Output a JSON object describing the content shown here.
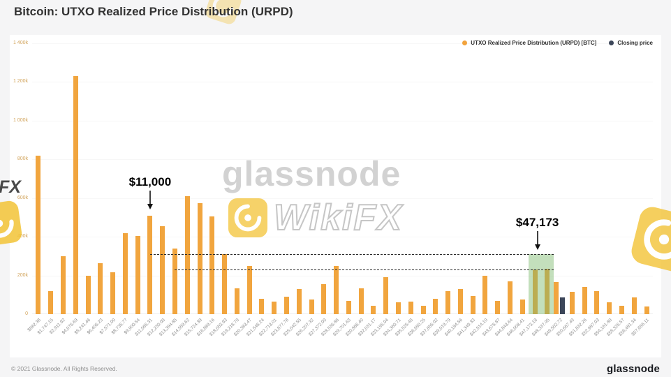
{
  "page": {
    "title": "Bitcoin: UTXO Realized Price Distribution (URPD)",
    "footer_left": "© 2021 Glassnode. All Rights Reserved.",
    "footer_brand": "glassnode"
  },
  "watermark": {
    "line1": "glassnode",
    "line2": "WikiFX",
    "edge_text": "FX"
  },
  "chart_data": {
    "type": "bar",
    "title": "Bitcoin: UTXO Realized Price Distribution (URPD)",
    "xlabel": "",
    "ylabel": "",
    "ylim": [
      0,
      1400
    ],
    "y_tick_step": 200,
    "ytick_labels": [
      "0",
      "200k",
      "400k",
      "600k",
      "800k",
      "1 000k",
      "1 200k",
      "1 400k"
    ],
    "values_unit": "k BTC",
    "grid": false,
    "legend_position": "top-right",
    "legend": [
      {
        "label": "UTXO Realized Price Distribution (URPD) [BTC]",
        "color": "#f2a33c"
      },
      {
        "label": "Closing price",
        "color": "#3c4659"
      }
    ],
    "categories": [
      "$582.38",
      "$1,747.15",
      "$2,911.92",
      "$4,076.69",
      "$5,241.46",
      "$6,406.23",
      "$7,571.00",
      "$8,735.77",
      "$9,900.54",
      "$11,065.31",
      "$12,230.08",
      "$13,394.85",
      "$14,559.62",
      "$15,724.39",
      "$16,889.16",
      "$18,053.93",
      "$19,218.70",
      "$20,383.47",
      "$21,548.24",
      "$22,713.01",
      "$23,877.78",
      "$25,042.55",
      "$26,207.32",
      "$27,372.09",
      "$28,536.86",
      "$29,701.63",
      "$30,866.40",
      "$32,031.17",
      "$33,195.94",
      "$34,360.71",
      "$35,525.48",
      "$36,690.25",
      "$37,855.02",
      "$39,019.79",
      "$40,184.56",
      "$41,349.33",
      "$42,514.10",
      "$43,678.87",
      "$44,843.64",
      "$46,008.41",
      "$47,173.18",
      "$48,337.95",
      "$49,502.72",
      "$50,667.49",
      "$51,832.26",
      "$52,997.03",
      "$54,161.80",
      "$55,326.57",
      "$56,491.34",
      "$57,656.11"
    ],
    "values": [
      820,
      120,
      300,
      1230,
      200,
      265,
      215,
      420,
      405,
      510,
      455,
      340,
      610,
      575,
      505,
      310,
      135,
      250,
      80,
      65,
      90,
      130,
      75,
      155,
      250,
      70,
      135,
      45,
      190,
      60,
      65,
      45,
      80,
      120,
      130,
      95,
      200,
      70,
      170,
      75,
      230,
      235,
      165,
      115,
      140,
      120,
      60,
      45,
      85,
      40
    ],
    "closing_price": {
      "label": "Closing price",
      "index": 42,
      "value": 85
    },
    "highlight": {
      "from_index": 40,
      "to_index": 41,
      "top_value": 310
    },
    "dashed_lines": [
      {
        "value": 310,
        "from_index": 9,
        "to_index": 41.5
      },
      {
        "value": 232,
        "from_index": 11,
        "to_index": 41.5
      }
    ],
    "annotations": [
      {
        "text": "$11,000",
        "index": 9,
        "tip_value": 530
      },
      {
        "text": "$47,173",
        "index": 40.2,
        "tip_value": 322
      }
    ],
    "colors": {
      "bar": "#f1a53e",
      "closing": "#3c4659",
      "highlight": "rgba(123,183,107,0.45)",
      "ytick": "#d2a45c",
      "xtick": "#8f8f8f",
      "annotation": "#000000",
      "watermark_yellow": "#f3c437"
    }
  }
}
